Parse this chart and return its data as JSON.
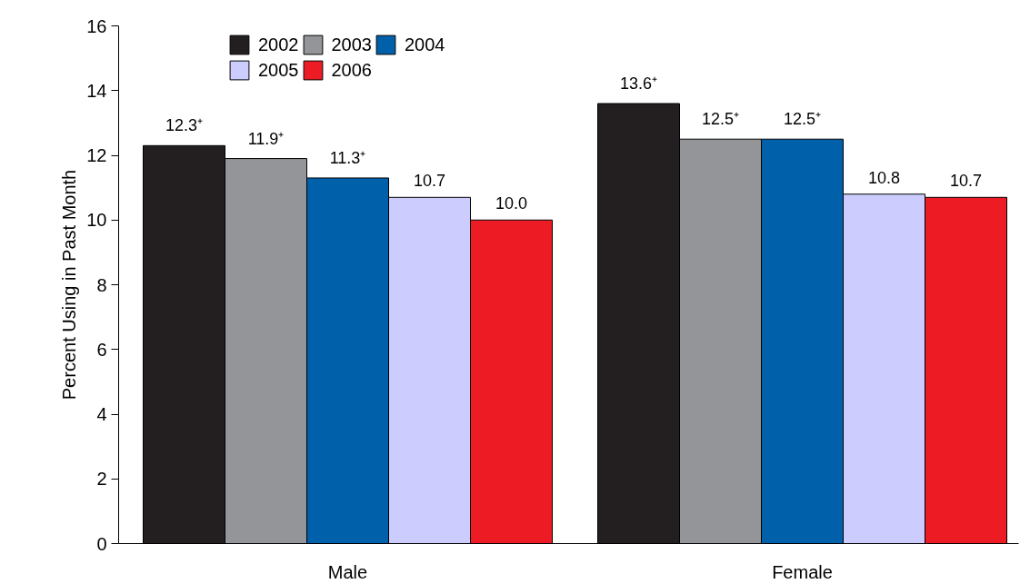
{
  "chart_data": {
    "type": "bar",
    "ylabel": "Percent Using in Past Month",
    "categories": [
      "Male",
      "Female"
    ],
    "series": [
      {
        "name": "2002",
        "color": "#231f20",
        "values": [
          12.3,
          13.6
        ],
        "value_labels": [
          "12.3⁺",
          "13.6⁺"
        ]
      },
      {
        "name": "2003",
        "color": "#939598",
        "values": [
          11.9,
          12.5
        ],
        "value_labels": [
          "11.9⁺",
          "12.5⁺"
        ]
      },
      {
        "name": "2004",
        "color": "#0060a9",
        "values": [
          11.3,
          12.5
        ],
        "value_labels": [
          "11.3⁺",
          "12.5⁺"
        ]
      },
      {
        "name": "2005",
        "color": "#ccccff",
        "values": [
          10.7,
          10.8
        ],
        "value_labels": [
          "10.7",
          "10.8"
        ]
      },
      {
        "name": "2006",
        "color": "#ed1c24",
        "values": [
          10.0,
          10.7
        ],
        "value_labels": [
          "10.0",
          "10.7"
        ]
      }
    ],
    "ylim": [
      0,
      16
    ],
    "yticks": [
      0,
      2,
      4,
      6,
      8,
      10,
      12,
      14,
      16
    ],
    "grid": false,
    "legend": "top"
  }
}
